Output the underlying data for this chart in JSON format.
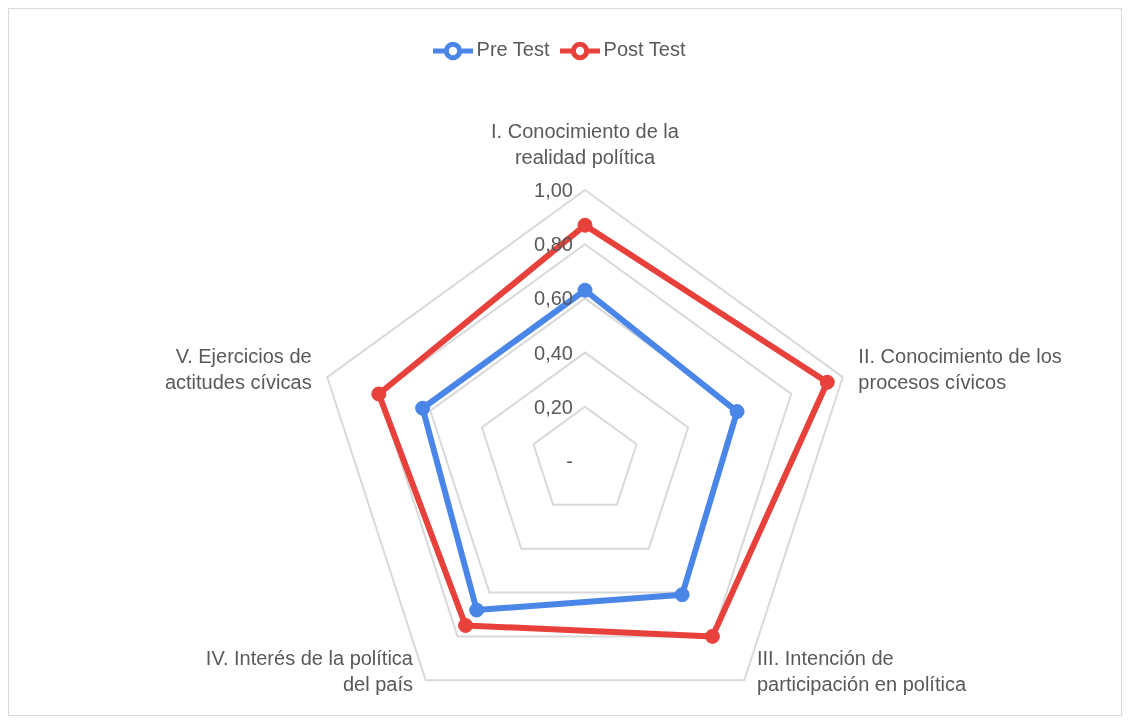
{
  "chart_data": {
    "type": "radar",
    "categories": [
      "I. Conocimiento de la\nrealidad política",
      "II. Conocimiento de los\nprocesos cívicos",
      "III. Intención de\nparticipación en política",
      "IV. Interés de la política\ndel país",
      "V. Ejercicios de\nactitudes cívicas"
    ],
    "series": [
      {
        "name": "Pre Test",
        "color": "#4a86e8",
        "values": [
          0.63,
          0.59,
          0.61,
          0.68,
          0.63
        ]
      },
      {
        "name": "Post Test",
        "color": "#e8403a",
        "values": [
          0.87,
          0.94,
          0.8,
          0.75,
          0.8
        ]
      }
    ],
    "ylim": [
      0,
      1
    ],
    "yticks": [
      {
        "value": 0,
        "label": "-"
      },
      {
        "value": 0.2,
        "label": "0,20"
      },
      {
        "value": 0.4,
        "label": "0,40"
      },
      {
        "value": 0.6,
        "label": "0,60"
      },
      {
        "value": 0.8,
        "label": "0,80"
      },
      {
        "value": 1,
        "label": "1,00"
      }
    ],
    "grid": true,
    "legend": "top",
    "marker": "circle"
  }
}
